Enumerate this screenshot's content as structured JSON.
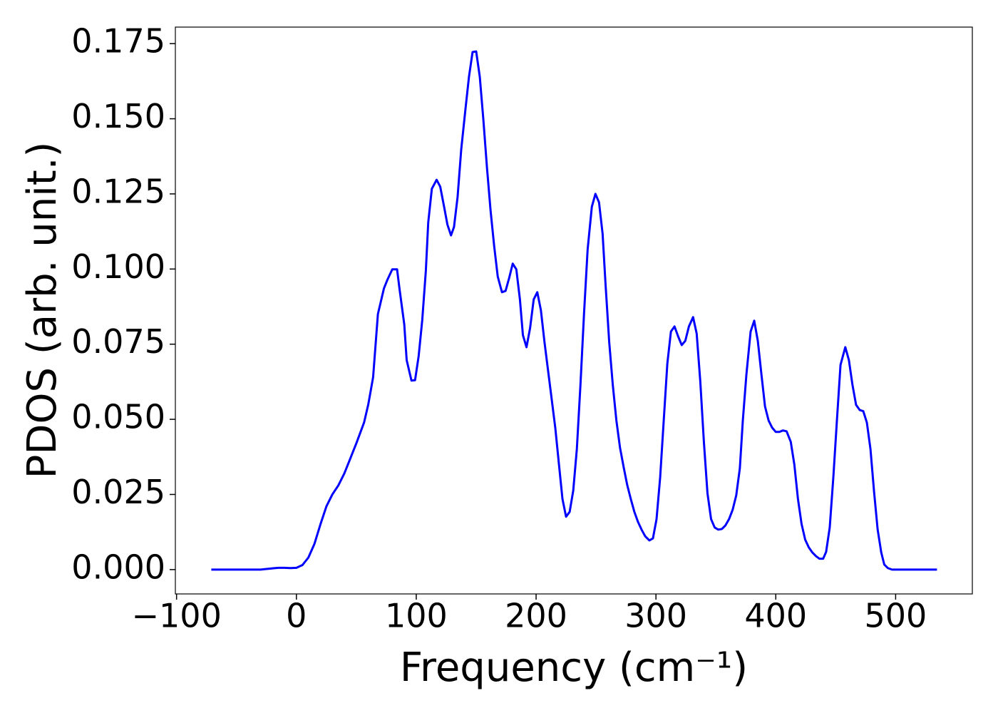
{
  "chart_data": {
    "type": "line",
    "xlabel": "Frequency (cm⁻¹)",
    "ylabel": "PDOS (arb. unit.)",
    "color": "#0000ff",
    "xlim": [
      -101,
      564
    ],
    "ylim": [
      -0.0081,
      0.1805
    ],
    "xticks": [
      {
        "value": -100,
        "label": "−100"
      },
      0,
      100,
      200,
      300,
      400,
      500
    ],
    "yticks": [
      {
        "value": 0,
        "label": "0.000"
      },
      {
        "value": 0.025,
        "label": "0.025"
      },
      {
        "value": 0.05,
        "label": "0.050"
      },
      {
        "value": 0.075,
        "label": "0.075"
      },
      {
        "value": 0.1,
        "label": "0.100"
      },
      {
        "value": 0.125,
        "label": "0.125"
      },
      {
        "value": 0.15,
        "label": "0.150"
      },
      {
        "value": 0.175,
        "label": "0.175"
      }
    ],
    "x": [
      -71,
      -60,
      -50,
      -40,
      -30,
      -25,
      -20,
      -15,
      -10,
      -5,
      0,
      5,
      10,
      15,
      20,
      25,
      30,
      35,
      40,
      45,
      50,
      56.5,
      60,
      64,
      68,
      73,
      76,
      80,
      84,
      86,
      90,
      92,
      96,
      99,
      102,
      105,
      108,
      110,
      113,
      117,
      120,
      123,
      126,
      129,
      131.5,
      134.5,
      137.5,
      141,
      144,
      147,
      150,
      153,
      156,
      159,
      162,
      165,
      168,
      171.5,
      174.5,
      177.5,
      180.5,
      183.5,
      186.5,
      189,
      192,
      195,
      198,
      201,
      204,
      207,
      210,
      213,
      216,
      219,
      222,
      225,
      228,
      231,
      234,
      237,
      240,
      243,
      246.5,
      249.5,
      252.5,
      255.5,
      258,
      261,
      264,
      267,
      270,
      273,
      276,
      279,
      282,
      285,
      288,
      291,
      294.5,
      297.5,
      300.5,
      303.5,
      306.5,
      309.5,
      312.5,
      315.5,
      318.5,
      321.5,
      324.5,
      327.5,
      331,
      334,
      337,
      340,
      343,
      346,
      349,
      352,
      355,
      358,
      361,
      364,
      367,
      370,
      372.5,
      375.5,
      379,
      382,
      385,
      388,
      391,
      394,
      397,
      400,
      403,
      406,
      409,
      412.5,
      415.5,
      418.5,
      421.5,
      424.5,
      427.5,
      430.5,
      433.5,
      436.5,
      439.5,
      442,
      445,
      448,
      451,
      454,
      458,
      461,
      464,
      467,
      470,
      473,
      476,
      479,
      482,
      485,
      488,
      490.5,
      493.5,
      497,
      534.5
    ],
    "values": [
      0,
      0,
      0,
      0,
      0,
      0.0002,
      0.0004,
      0.0006,
      0.0006,
      0.0005,
      0.0006,
      0.0015,
      0.004,
      0.0085,
      0.015,
      0.021,
      0.025,
      0.028,
      0.032,
      0.037,
      0.042,
      0.049,
      0.055,
      0.064,
      0.085,
      0.0935,
      0.0965,
      0.0999,
      0.0999,
      0.0935,
      0.0816,
      0.0697,
      0.0629,
      0.063,
      0.071,
      0.083,
      0.0994,
      0.1155,
      0.1267,
      0.1297,
      0.1274,
      0.1212,
      0.1148,
      0.1112,
      0.114,
      0.124,
      0.1397,
      0.153,
      0.164,
      0.1722,
      0.1724,
      0.164,
      0.1497,
      0.1338,
      0.1195,
      0.1077,
      0.0975,
      0.0923,
      0.0927,
      0.097,
      0.1018,
      0.0999,
      0.0899,
      0.078,
      0.074,
      0.0804,
      0.0899,
      0.0923,
      0.0863,
      0.0757,
      0.0662,
      0.0567,
      0.0472,
      0.0353,
      0.0235,
      0.0176,
      0.0192,
      0.0263,
      0.0401,
      0.0614,
      0.0852,
      0.1065,
      0.1207,
      0.125,
      0.1222,
      0.1117,
      0.0946,
      0.0757,
      0.0614,
      0.0496,
      0.0406,
      0.0342,
      0.0282,
      0.0235,
      0.0192,
      0.0159,
      0.0133,
      0.0111,
      0.0097,
      0.0104,
      0.0168,
      0.0306,
      0.0496,
      0.0685,
      0.0792,
      0.0809,
      0.0776,
      0.0747,
      0.0761,
      0.0809,
      0.084,
      0.0785,
      0.0626,
      0.0425,
      0.0254,
      0.0168,
      0.014,
      0.0133,
      0.0135,
      0.0147,
      0.0168,
      0.0199,
      0.0247,
      0.0337,
      0.0496,
      0.065,
      0.0792,
      0.0828,
      0.0761,
      0.065,
      0.0543,
      0.0496,
      0.0472,
      0.0458,
      0.0458,
      0.0463,
      0.046,
      0.0425,
      0.0349,
      0.0235,
      0.0152,
      0.01,
      0.0074,
      0.0057,
      0.0045,
      0.0036,
      0.0036,
      0.0059,
      0.014,
      0.0306,
      0.0496,
      0.0681,
      0.074,
      0.0697,
      0.0614,
      0.0548,
      0.0531,
      0.0527,
      0.0489,
      0.0401,
      0.0259,
      0.0133,
      0.0057,
      0.0017,
      0.0005,
      0,
      0
    ]
  }
}
